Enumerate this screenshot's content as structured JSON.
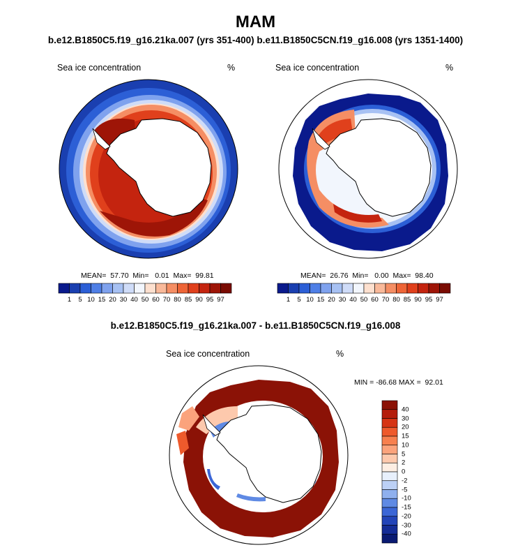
{
  "title": "MAM",
  "subtitle": "b.e12.B1850C5.f19_g16.21ka.007 (yrs 351-400) b.e11.B1850C5CN.f19_g16.008 (yrs 1351-1400)",
  "panel_left": {
    "variable": "Sea ice concentration",
    "units": "%",
    "stats": "MEAN=  57.70  Min=   0.01  Max=  99.81"
  },
  "panel_right": {
    "variable": "Sea ice concentration",
    "units": "%",
    "stats": "MEAN=  26.76  Min=   0.00  Max=  98.40"
  },
  "diff_title": "b.e12.B1850C5.f19_g16.21ka.007 - b.e11.B1850C5CN.f19_g16.008",
  "panel_diff": {
    "variable": "Sea ice concentration",
    "units": "%",
    "stats": "MIN = -86.68 MAX =  92.01"
  },
  "colorbar_horizontal": {
    "labels": [
      "1",
      "5",
      "10",
      "15",
      "20",
      "30",
      "40",
      "50",
      "60",
      "70",
      "80",
      "85",
      "90",
      "95",
      "97"
    ],
    "colors": [
      "#0a1a8c",
      "#1a3fb0",
      "#2c5fd6",
      "#4f7fe6",
      "#7fa2ee",
      "#a7c1f3",
      "#cfdcf8",
      "#f2f6fd",
      "#fde0cf",
      "#f9b99a",
      "#f58e64",
      "#ee6537",
      "#e0401c",
      "#c4240f",
      "#9e1507",
      "#7a0c03"
    ]
  },
  "colorbar_vertical": {
    "labels": [
      "40",
      "30",
      "20",
      "15",
      "10",
      "5",
      "2",
      "0",
      "-2",
      "-5",
      "-10",
      "-15",
      "-20",
      "-30",
      "-40"
    ],
    "colors": [
      "#8b1206",
      "#b41d0b",
      "#d63414",
      "#ee5a2c",
      "#f7804f",
      "#fba37c",
      "#fdc9ad",
      "#fdeee3",
      "#e8f0fc",
      "#bcd0f5",
      "#8fb0ee",
      "#5f8ae4",
      "#3b66d6",
      "#2244b8",
      "#142c96",
      "#0a1a72"
    ]
  }
}
